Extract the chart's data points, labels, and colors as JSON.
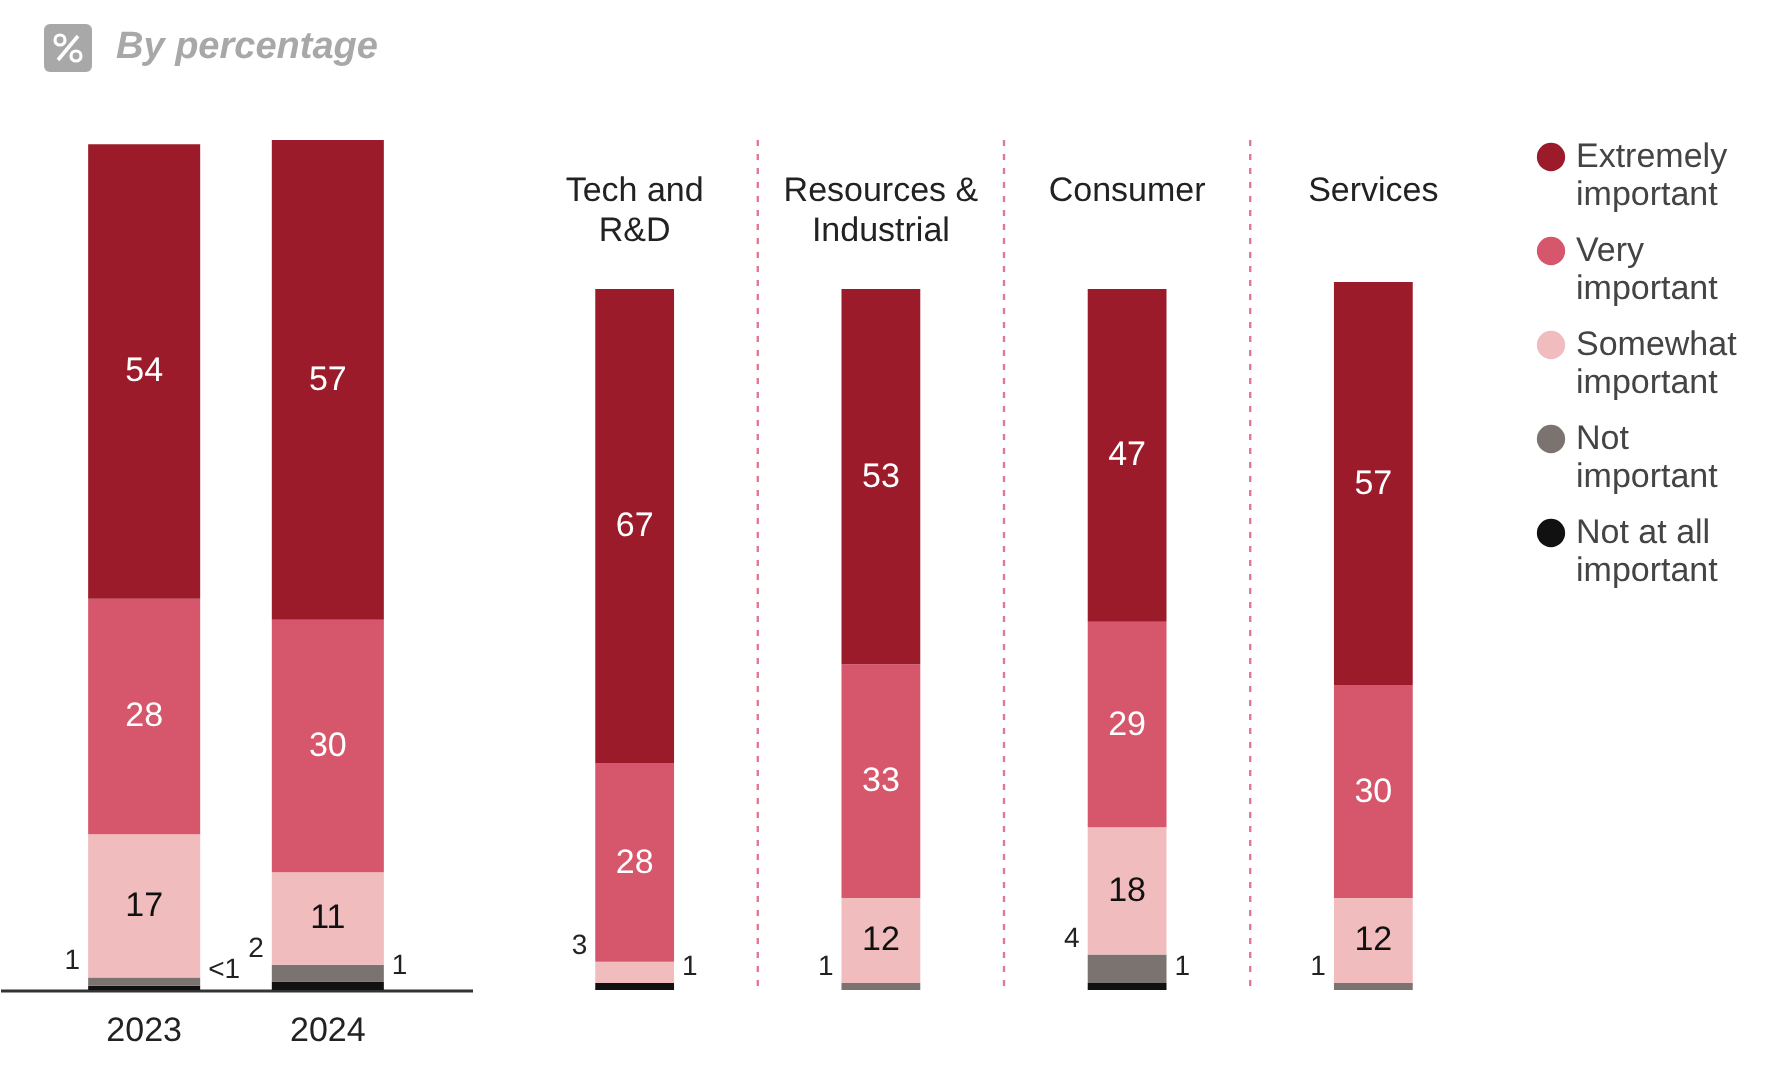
{
  "chart_data": [
    {
      "type": "bar",
      "title": "By percentage",
      "stacked": true,
      "legend": false,
      "categories": [
        "2023",
        "2024"
      ],
      "series": [
        {
          "color": "#111111",
          "values": [
            0.5,
            1
          ],
          "value_labels": [
            "<1",
            "1"
          ]
        },
        {
          "color": "#7a7370",
          "values": [
            1,
            2
          ],
          "value_labels": [
            "1",
            "2"
          ]
        },
        {
          "color": "#f0bcbd",
          "values": [
            17,
            11
          ],
          "value_labels": [
            "17",
            "11"
          ]
        },
        {
          "color": "#d6566c",
          "values": [
            28,
            30
          ],
          "value_labels": [
            "28",
            "30"
          ]
        },
        {
          "color": "#9b1b2a",
          "values": [
            54,
            57
          ],
          "value_labels": [
            "54",
            "57"
          ]
        }
      ]
    },
    {
      "type": "bar",
      "stacked": true,
      "legend": "right",
      "grid": "x",
      "categories": [
        "Tech and R&D",
        "Resources & Industrial",
        "Consumer",
        "Services"
      ],
      "series": [
        {
          "name": "Not at all important",
          "color": "#111111",
          "values": [
            1,
            null,
            1,
            null
          ],
          "value_labels": [
            "1",
            null,
            "1",
            null
          ]
        },
        {
          "name": "Not important",
          "color": "#7a7370",
          "values": [
            null,
            1,
            4,
            1
          ],
          "value_labels": [
            null,
            "1",
            "4",
            "1"
          ]
        },
        {
          "name": "Somewhat important",
          "color": "#f0bcbd",
          "values": [
            3,
            12,
            18,
            12
          ],
          "value_labels": [
            "3",
            "12",
            "18",
            "12"
          ]
        },
        {
          "name": "Very important",
          "color": "#d6566c",
          "values": [
            28,
            33,
            29,
            30
          ],
          "value_labels": [
            "28",
            "33",
            "29",
            "30"
          ]
        },
        {
          "name": "Extremely important",
          "color": "#9b1b2a",
          "values": [
            67,
            53,
            47,
            57
          ],
          "value_labels": [
            "67",
            "53",
            "47",
            "57"
          ]
        }
      ]
    }
  ]
}
